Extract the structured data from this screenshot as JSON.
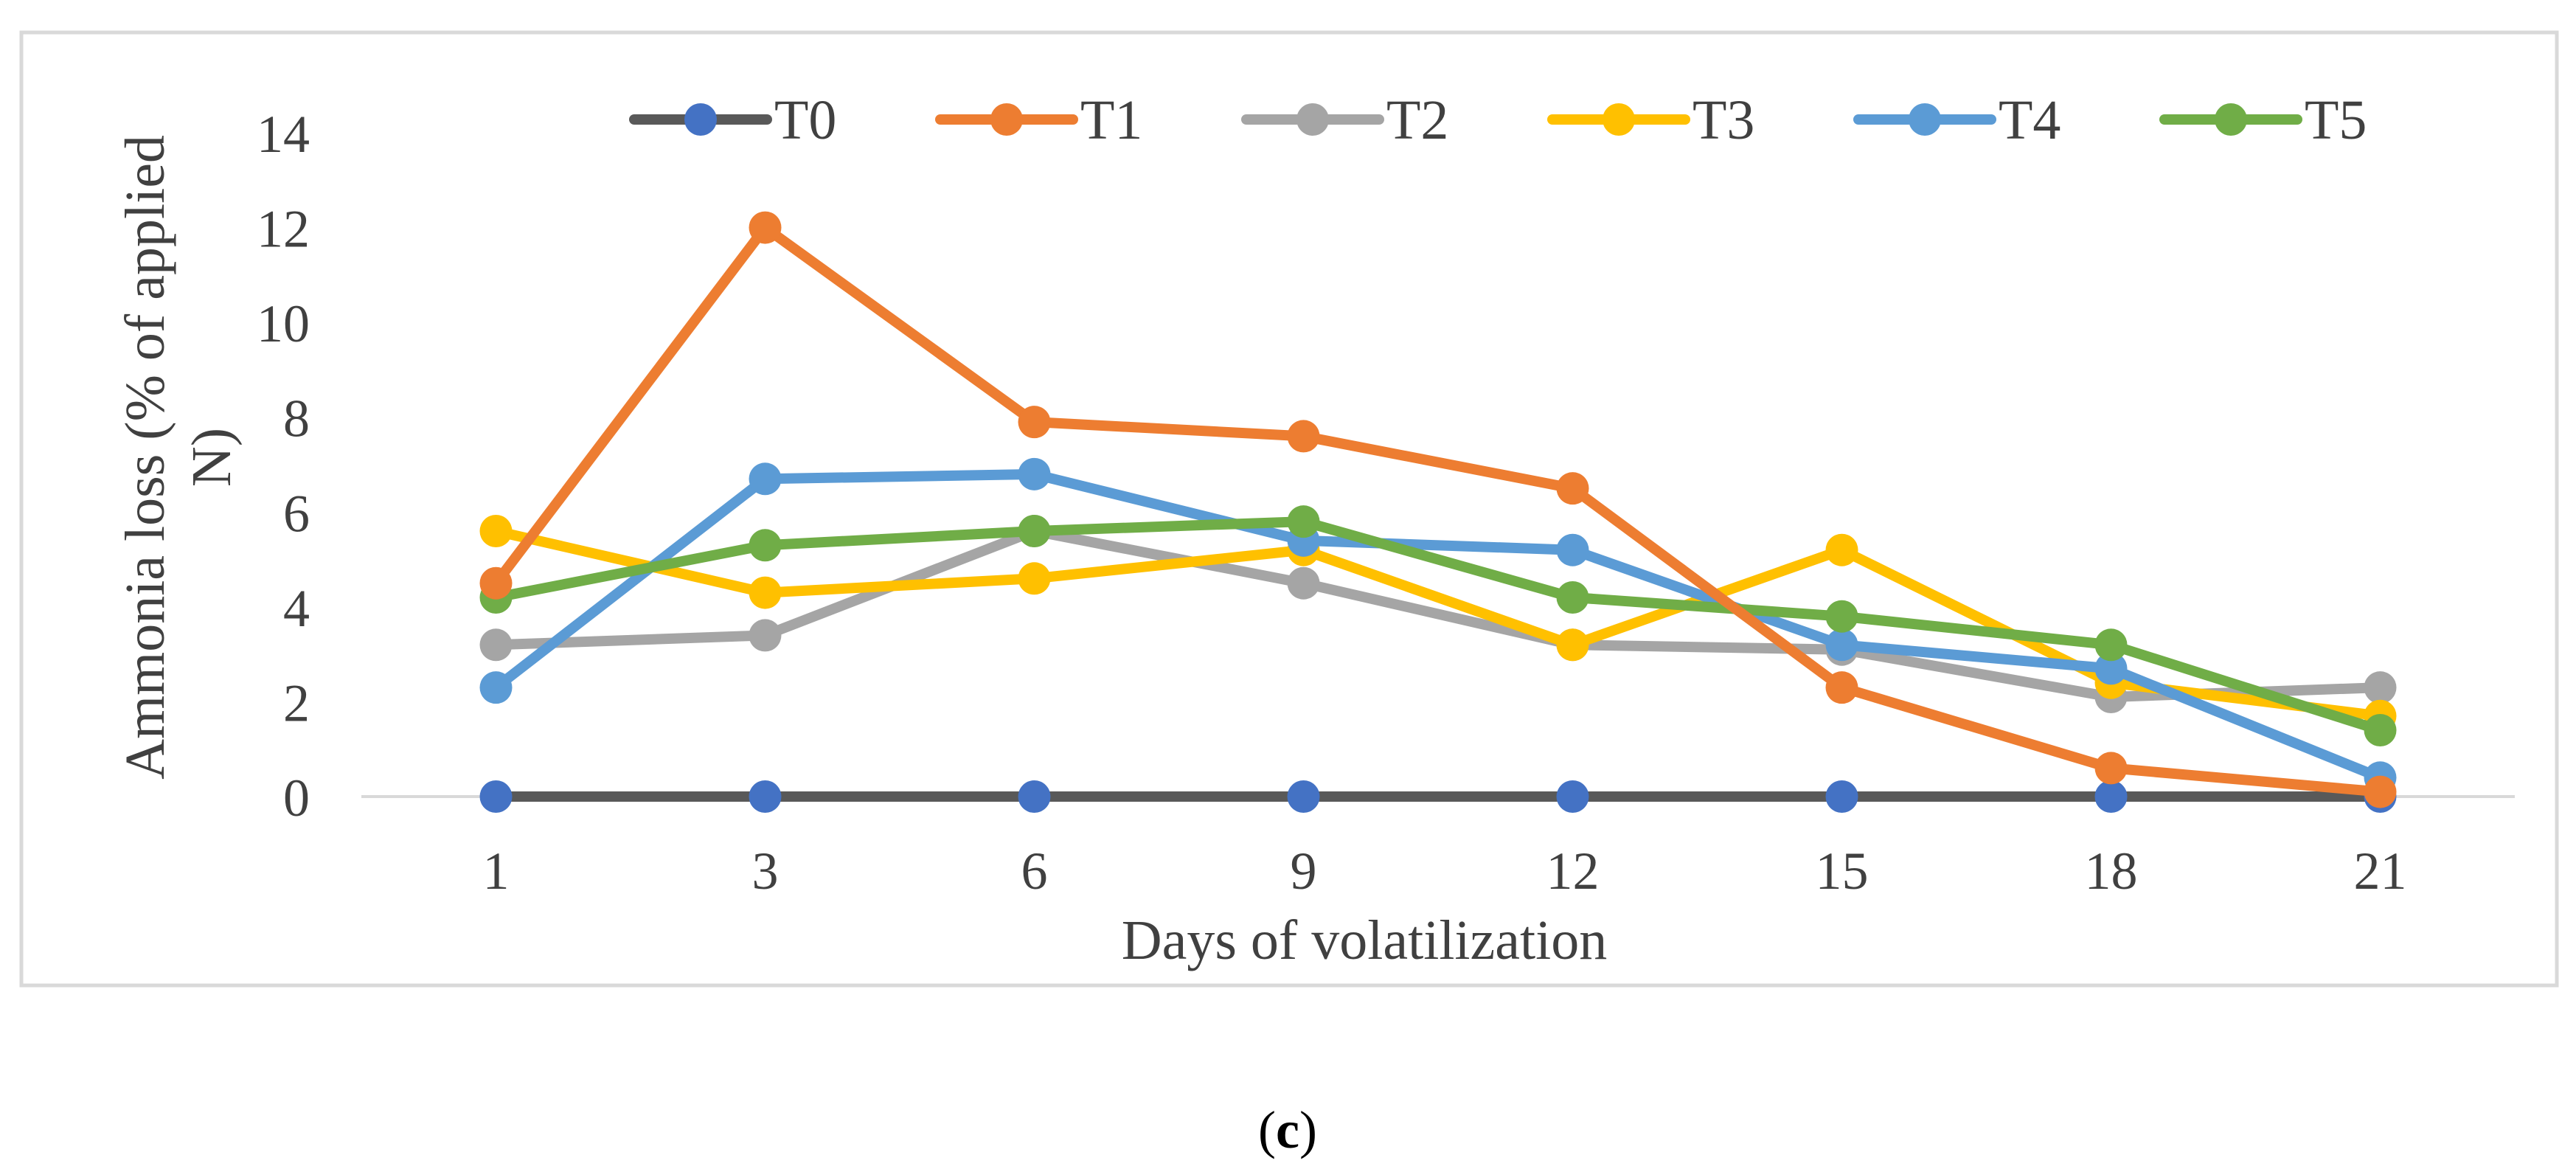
{
  "chart_data": {
    "type": "line",
    "title": "",
    "xlabel": "Days of volatilization",
    "ylabel": "Ammonia loss (% of applied N)",
    "ylabel_lines": [
      "Ammonia loss (% of applied",
      "N)"
    ],
    "categories": [
      "1",
      "3",
      "6",
      "9",
      "12",
      "15",
      "18",
      "21"
    ],
    "ylim": [
      0,
      14
    ],
    "yticks": [
      "0",
      "2",
      "4",
      "6",
      "8",
      "10",
      "12",
      "14"
    ],
    "grid": false,
    "legend_position": "top",
    "series": [
      {
        "name": "T0",
        "color": "#595959",
        "marker_color": "#4472C4",
        "values": [
          0,
          0,
          0,
          0,
          0,
          0,
          0,
          0
        ]
      },
      {
        "name": "T2",
        "color": "#A5A5A5",
        "marker_color": "#A5A5A5",
        "values": [
          3.2,
          3.4,
          5.6,
          4.5,
          3.2,
          3.1,
          2.1,
          2.3
        ]
      },
      {
        "name": "T3",
        "color": "#FFC000",
        "marker_color": "#FFC000",
        "values": [
          5.6,
          4.3,
          4.6,
          5.2,
          3.2,
          5.2,
          2.4,
          1.7
        ]
      },
      {
        "name": "T4",
        "color": "#5B9BD5",
        "marker_color": "#5B9BD5",
        "values": [
          2.3,
          6.7,
          6.8,
          5.4,
          5.2,
          3.2,
          2.7,
          0.4
        ]
      },
      {
        "name": "T5",
        "color": "#70AD47",
        "marker_color": "#70AD47",
        "values": [
          4.2,
          5.3,
          5.6,
          5.8,
          4.2,
          3.8,
          3.2,
          1.4
        ]
      },
      {
        "name": "T1",
        "color": "#ED7D31",
        "marker_color": "#ED7D31",
        "values": [
          4.5,
          12.0,
          7.9,
          7.6,
          6.5,
          2.3,
          0.6,
          0.1
        ]
      }
    ],
    "legend_order": [
      "T0",
      "T1",
      "T2",
      "T3",
      "T4",
      "T5"
    ]
  },
  "caption": {
    "open": "(",
    "letter": "c",
    "close": ")"
  }
}
